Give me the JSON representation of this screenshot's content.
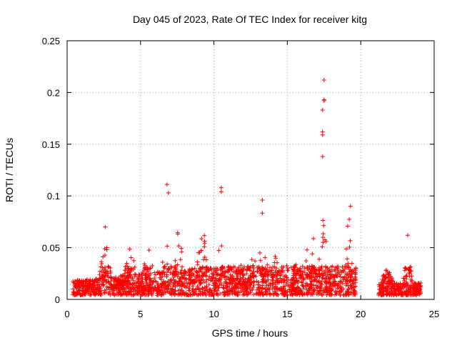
{
  "chart_data": {
    "type": "scatter",
    "title": "Day 045 of 2023, Rate Of TEC Index for receiver kitg",
    "xlabel": "GPS time / hours",
    "ylabel": "ROTI / TECUs",
    "xlim": [
      0,
      25
    ],
    "ylim": [
      0,
      0.25
    ],
    "xticks": [
      0,
      5,
      10,
      15,
      20,
      25
    ],
    "xtick_labels": [
      "0",
      "5",
      "10",
      "15",
      "20",
      "25"
    ],
    "yticks": [
      0,
      0.05,
      0.1,
      0.15,
      0.2,
      0.25
    ],
    "ytick_labels": [
      "0",
      "0.05",
      "0.1",
      "0.15",
      "0.2",
      "0.25"
    ],
    "grid": true,
    "marker": "+",
    "series": [
      {
        "name": "ROTI",
        "color": "#ff0000",
        "notable_points": [
          {
            "x": 2.6,
            "y": 0.07
          },
          {
            "x": 6.8,
            "y": 0.111
          },
          {
            "x": 6.9,
            "y": 0.103
          },
          {
            "x": 10.5,
            "y": 0.108
          },
          {
            "x": 10.5,
            "y": 0.104
          },
          {
            "x": 13.3,
            "y": 0.096
          },
          {
            "x": 17.5,
            "y": 0.212
          },
          {
            "x": 17.5,
            "y": 0.193
          },
          {
            "x": 17.5,
            "y": 0.192
          },
          {
            "x": 17.4,
            "y": 0.183
          },
          {
            "x": 17.4,
            "y": 0.162
          },
          {
            "x": 17.4,
            "y": 0.159
          },
          {
            "x": 17.4,
            "y": 0.138
          },
          {
            "x": 19.3,
            "y": 0.09
          },
          {
            "x": 23.2,
            "y": 0.062
          }
        ],
        "data_gaps": [
          [
            0,
            0.4
          ],
          [
            19.7,
            21.2
          ],
          [
            24.1,
            25
          ]
        ]
      }
    ]
  }
}
